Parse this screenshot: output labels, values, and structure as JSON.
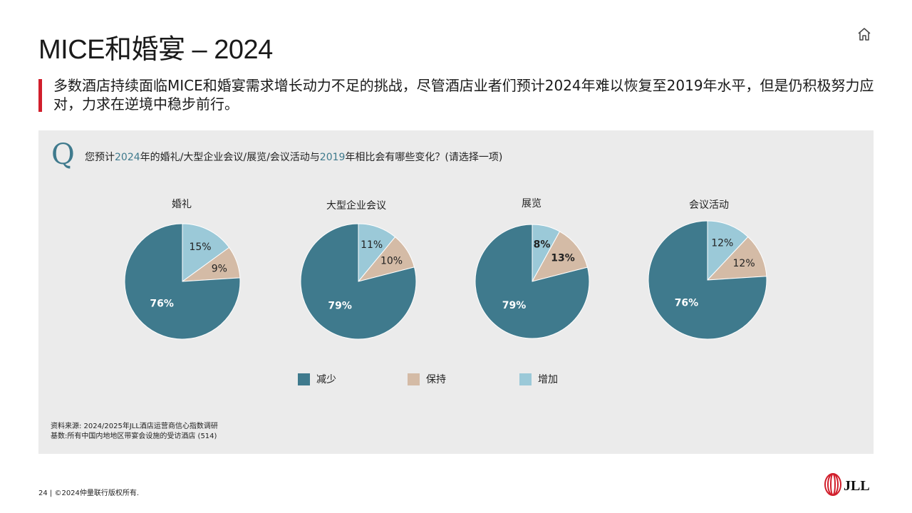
{
  "header": {
    "title": "MICE和婚宴 – 2024",
    "subtitle": "多数酒店持续面临MICE和婚宴需求增长动力不足的挑战，尽管酒店业者们预计2024年难以恢复至2019年水平，但是仍积极努力应对，力求在逆境中稳步前行。",
    "home_icon": "home-icon"
  },
  "question": {
    "mark": "Q",
    "text_1": "您预计",
    "year_1": "2024",
    "text_2": "年的婚礼/大型企业会议/展览/会议活动与",
    "year_2": "2019",
    "text_3": "年相比会有哪些变化？(请选择一项)"
  },
  "colors": {
    "decrease": "#3f7a8d",
    "maintain": "#d4bba6",
    "increase": "#9bc9d8",
    "accent_red": "#d11f2c",
    "panel_bg": "#ebebeb"
  },
  "chart_data": [
    {
      "type": "pie",
      "title": "婚礼",
      "labels": [
        "减少",
        "保持",
        "增加"
      ],
      "values": [
        76,
        9,
        15
      ],
      "value_labels": [
        "76%",
        "9%",
        "15%"
      ]
    },
    {
      "type": "pie",
      "title": "大型企业会议",
      "labels": [
        "减少",
        "保持",
        "增加"
      ],
      "values": [
        79,
        10,
        11
      ],
      "value_labels": [
        "79%",
        "10%",
        "11%"
      ]
    },
    {
      "type": "pie",
      "title": "展览",
      "labels": [
        "减少",
        "保持",
        "增加"
      ],
      "values": [
        79,
        13,
        8
      ],
      "value_labels": [
        "79%",
        "13%",
        "8%"
      ]
    },
    {
      "type": "pie",
      "title": "会议活动",
      "labels": [
        "减少",
        "保持",
        "增加"
      ],
      "values": [
        76,
        12,
        12
      ],
      "value_labels": [
        "76%",
        "12%",
        "12%"
      ]
    }
  ],
  "legend": {
    "items": [
      {
        "label": "减少",
        "color": "#3f7a8d"
      },
      {
        "label": "保持",
        "color": "#d4bba6"
      },
      {
        "label": "增加",
        "color": "#9bc9d8"
      }
    ]
  },
  "source": {
    "line1": "资料来源: 2024/2025年JLL酒店运营商信心指数调研",
    "line2": "基数:所有中国内地地区带宴会设施的受访酒店 (514)"
  },
  "footer": {
    "text": "24 | ©2024仲量联行版权所有."
  },
  "logo": {
    "text": "JLL"
  }
}
